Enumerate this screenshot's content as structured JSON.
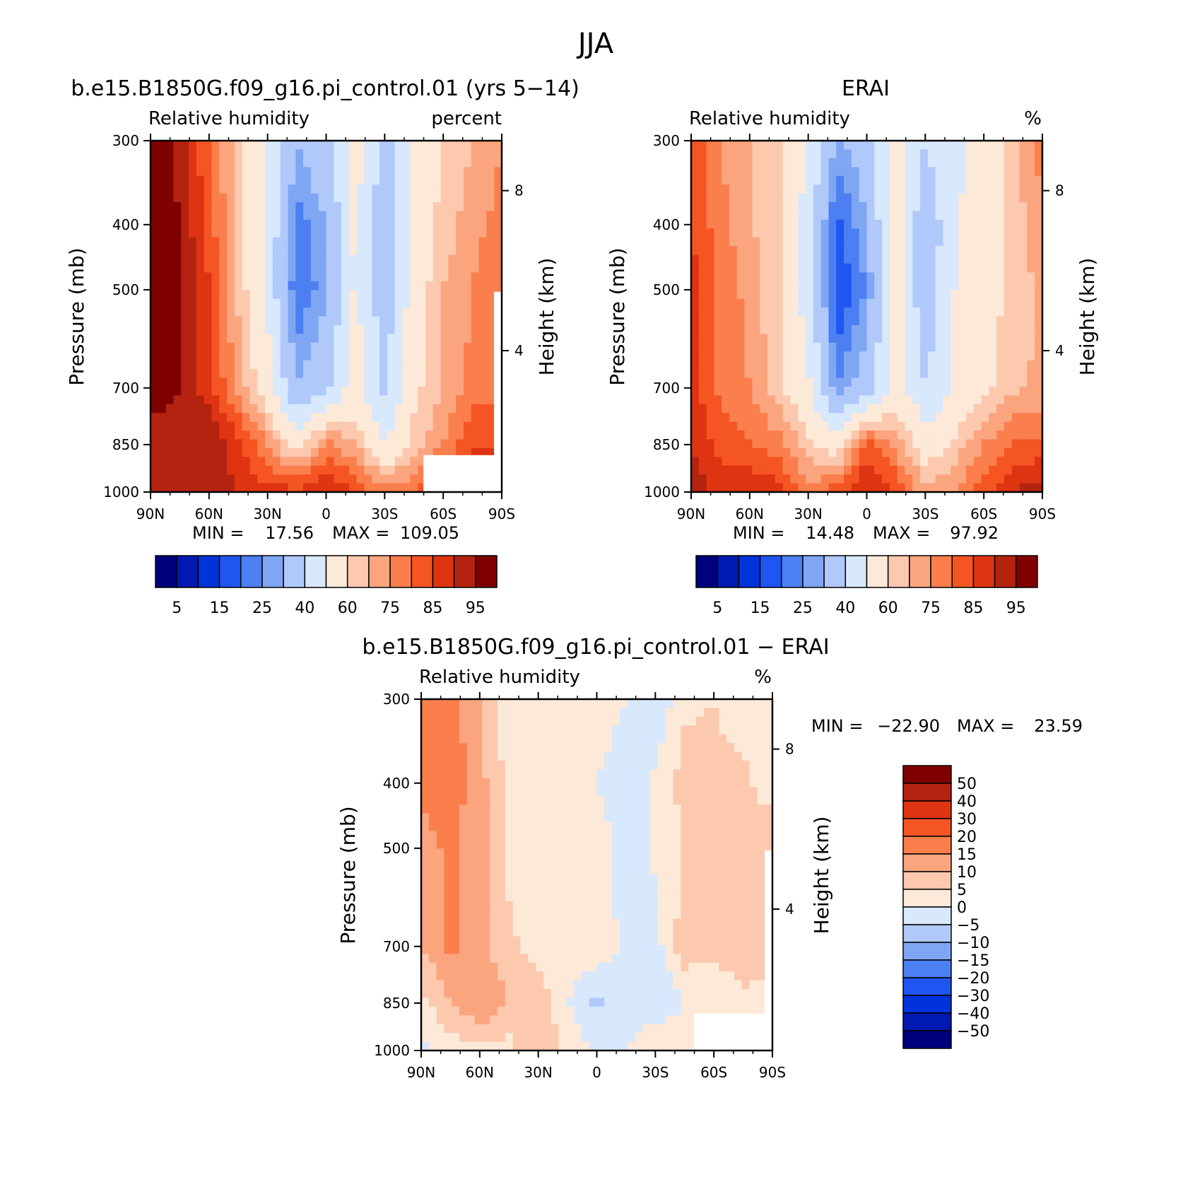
{
  "title": "JJA",
  "colors": {
    "rh_scale": [
      "#00007f",
      "#0019b0",
      "#0033d9",
      "#1f55f0",
      "#4c7ff2",
      "#7ea6f3",
      "#b0c9fa",
      "#d8e8fd",
      "#fde9d8",
      "#fcc8ae",
      "#fba57f",
      "#fa7f4c",
      "#f55523",
      "#de3412",
      "#b42310",
      "#800000"
    ],
    "diff_scale": [
      "#00007f",
      "#0019b0",
      "#0033d9",
      "#1f55f0",
      "#4c7ff2",
      "#7ea6f3",
      "#b0c9fa",
      "#d8e8fd",
      "#fde9d8",
      "#fcc8ae",
      "#fba57f",
      "#fa7f4c",
      "#f55523",
      "#de3412",
      "#b42310",
      "#800000"
    ]
  },
  "chart_data": [
    {
      "type": "heatmap",
      "title": "b.e15.B1850G.f09_g16.pi_control.01 (yrs 5−14)",
      "left_label": "Relative humidity",
      "right_label": "percent",
      "ylabel": "Pressure (mb)",
      "ylabel_right": "Height (km)",
      "x_ticks": [
        "90N",
        "60N",
        "30N",
        "0",
        "30S",
        "60S",
        "90S"
      ],
      "y_ticks": [
        "300",
        "400",
        "500",
        "700",
        "850",
        "1000"
      ],
      "y_right_ticks": [
        "8",
        "4"
      ],
      "stats": {
        "min_label": "MIN =",
        "min": "17.56",
        "max_label": "MAX =",
        "max": "109.05"
      },
      "colorbar_labels": [
        "5",
        "15",
        "25",
        "40",
        "60",
        "75",
        "85",
        "95"
      ],
      "profile_lat": [
        -90,
        -75,
        -60,
        -45,
        -30,
        -15,
        0,
        15,
        30,
        45,
        60,
        75,
        90
      ],
      "profile_levels": [
        300,
        400,
        500,
        700,
        850,
        1000
      ],
      "values": [
        [
          70,
          65,
          60,
          52,
          35,
          55,
          38,
          30,
          50,
          62,
          75,
          88,
          96
        ],
        [
          72,
          68,
          62,
          55,
          33,
          52,
          30,
          22,
          48,
          63,
          78,
          90,
          96
        ],
        [
          75,
          70,
          65,
          55,
          33,
          52,
          28,
          20,
          48,
          64,
          80,
          90,
          95
        ],
        [
          75,
          72,
          65,
          58,
          38,
          55,
          38,
          30,
          55,
          68,
          82,
          90,
          92
        ],
        [
          78,
          80,
          70,
          62,
          50,
          65,
          72,
          55,
          70,
          82,
          90,
          88,
          88
        ],
        [
          88,
          85,
          80,
          75,
          72,
          80,
          85,
          82,
          82,
          85,
          88,
          86,
          86
        ]
      ]
    },
    {
      "type": "heatmap",
      "title": "ERAI",
      "left_label": "Relative humidity",
      "right_label": "%",
      "ylabel": "Pressure (mb)",
      "ylabel_right": "Height (km)",
      "x_ticks": [
        "90N",
        "60N",
        "30N",
        "0",
        "30S",
        "60S",
        "90S"
      ],
      "y_ticks": [
        "300",
        "400",
        "500",
        "700",
        "850",
        "1000"
      ],
      "y_right_ticks": [
        "8",
        "4"
      ],
      "stats": {
        "min_label": "MIN =",
        "min": "14.48",
        "max_label": "MAX =",
        "max": "97.92"
      },
      "colorbar_labels": [
        "5",
        "15",
        "25",
        "40",
        "60",
        "75",
        "85",
        "95"
      ],
      "values": [
        [
          72,
          62,
          55,
          48,
          40,
          55,
          35,
          28,
          50,
          62,
          65,
          70,
          80
        ],
        [
          70,
          62,
          56,
          48,
          32,
          55,
          30,
          18,
          45,
          60,
          66,
          72,
          80
        ],
        [
          66,
          62,
          56,
          50,
          32,
          55,
          25,
          15,
          45,
          60,
          68,
          74,
          82
        ],
        [
          66,
          64,
          58,
          50,
          40,
          56,
          35,
          25,
          52,
          62,
          70,
          74,
          82
        ],
        [
          76,
          76,
          70,
          62,
          55,
          68,
          78,
          55,
          62,
          72,
          75,
          78,
          85
        ],
        [
          88,
          85,
          78,
          70,
          66,
          80,
          86,
          78,
          72,
          82,
          85,
          84,
          88
        ]
      ]
    },
    {
      "type": "heatmap",
      "title": "b.e15.B1850G.f09_g16.pi_control.01 − ERAI",
      "left_label": "Relative humidity",
      "right_label": "%",
      "ylabel": "Pressure (mb)",
      "ylabel_right": "Height (km)",
      "x_ticks": [
        "90N",
        "60N",
        "30N",
        "0",
        "30S",
        "60S",
        "90S"
      ],
      "y_ticks": [
        "300",
        "400",
        "500",
        "700",
        "850",
        "1000"
      ],
      "y_right_ticks": [
        "8",
        "4"
      ],
      "stats": {
        "min_label": "MIN =",
        "min": "−22.90",
        "max_label": "MAX =",
        "max": "23.59"
      },
      "colorbar_labels": [
        "50",
        "40",
        "30",
        "20",
        "15",
        "10",
        "5",
        "0",
        "−5",
        "−10",
        "−15",
        "−20",
        "−30",
        "−40",
        "−50"
      ],
      "values": [
        [
          2,
          3,
          5,
          4,
          -5,
          0,
          3,
          2,
          0,
          2,
          10,
          18,
          20
        ],
        [
          2,
          6,
          6,
          7,
          1,
          -3,
          0,
          4,
          3,
          3,
          12,
          18,
          16
        ],
        [
          9,
          8,
          9,
          5,
          1,
          -3,
          3,
          5,
          3,
          4,
          12,
          16,
          13
        ],
        [
          9,
          8,
          7,
          8,
          -2,
          -1,
          3,
          5,
          3,
          6,
          12,
          16,
          10
        ],
        [
          2,
          4,
          0,
          0,
          -5,
          -3,
          -6,
          0,
          8,
          10,
          15,
          10,
          3
        ],
        [
          0,
          0,
          2,
          5,
          6,
          0,
          -1,
          4,
          10,
          3,
          3,
          2,
          -2
        ]
      ]
    }
  ]
}
